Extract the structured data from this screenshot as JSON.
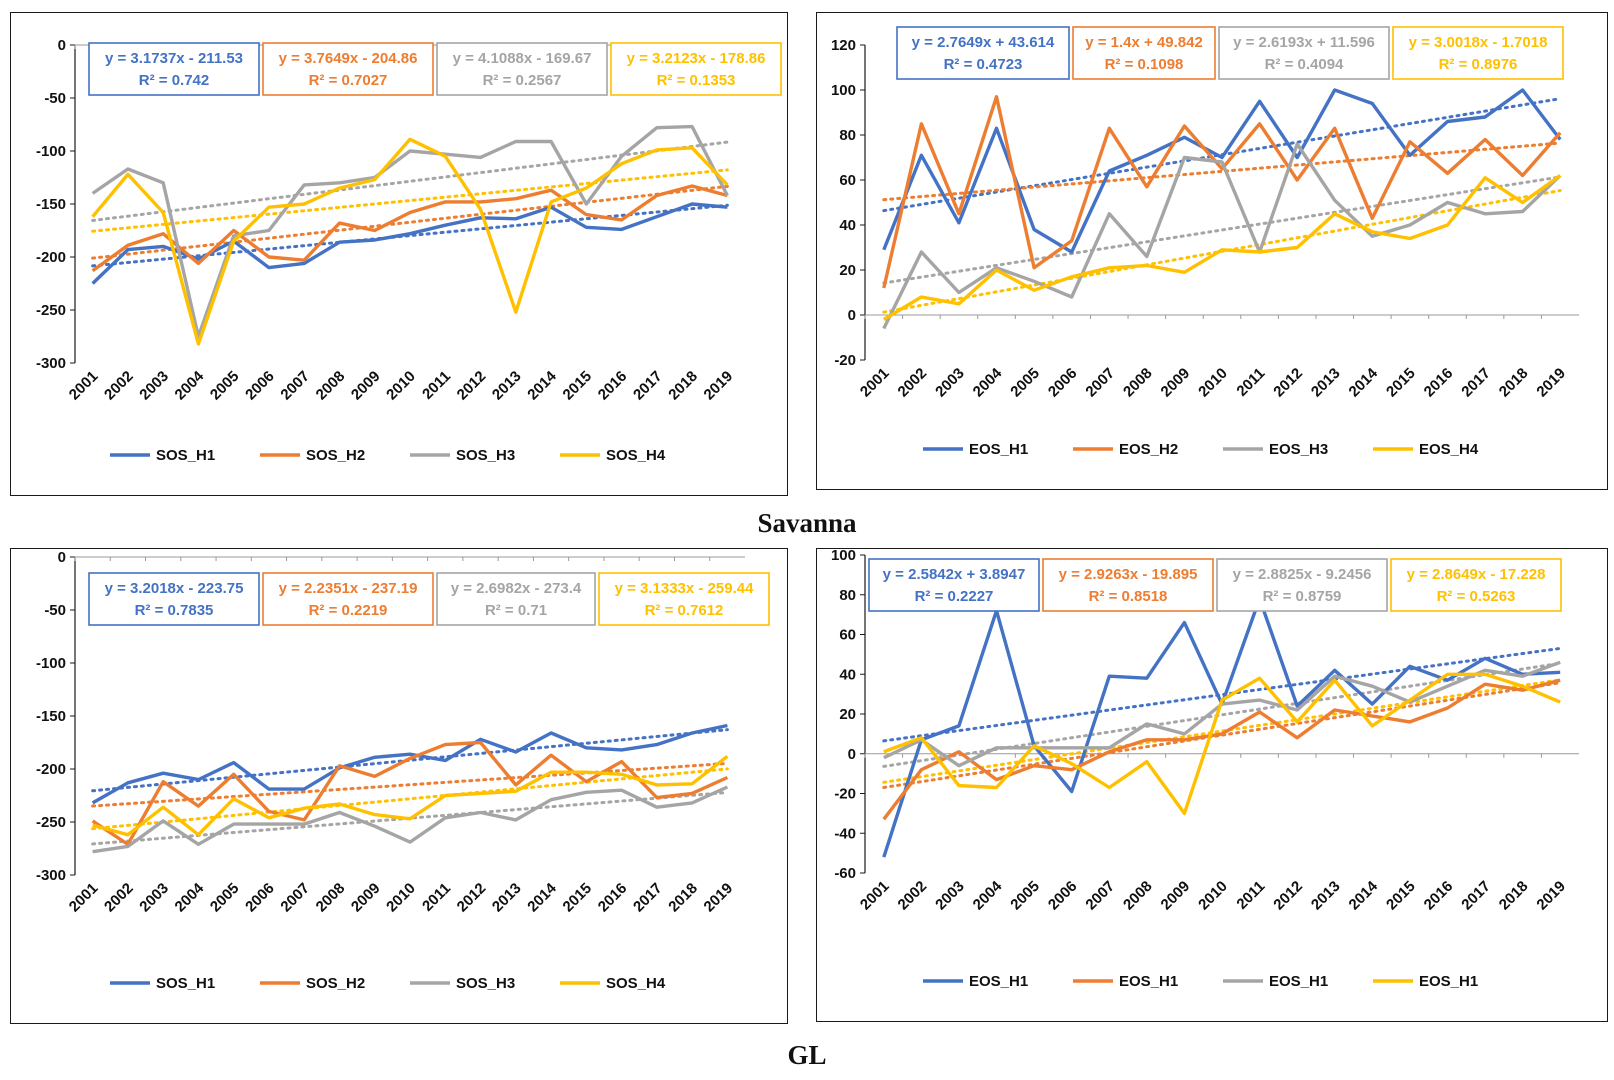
{
  "sections": {
    "top_label": "Savanna",
    "bottom_label": "GL"
  },
  "colors": {
    "H1": "#4472C4",
    "H2": "#ED7D31",
    "H3": "#A5A5A5",
    "H4": "#FFC000",
    "axis": "#1a1a1a"
  },
  "chart_data": [
    {
      "id": "savanna-sos",
      "type": "line",
      "title": "",
      "xlabel": "",
      "ylabel": "",
      "categories": [
        "2001",
        "2002",
        "2003",
        "2004",
        "2005",
        "2006",
        "2007",
        "2008",
        "2009",
        "2010",
        "2011",
        "2012",
        "2013",
        "2014",
        "2015",
        "2016",
        "2017",
        "2018",
        "2019"
      ],
      "ylim": [
        -300,
        0
      ],
      "yticks": [
        0,
        -50,
        -100,
        -150,
        -200,
        -250,
        -300
      ],
      "trendline": "linear-dotted",
      "legend_position": "bottom",
      "series": [
        {
          "name": "SOS_H1",
          "color_key": "H1",
          "equation": "y = 3.1737x - 211.53",
          "r2": "R² = 0.742",
          "slope": 3.1737,
          "intercept": -211.53,
          "values": [
            -225,
            -193,
            -190,
            -202,
            -185,
            -210,
            -206,
            -186,
            -184,
            -178,
            -170,
            -163,
            -164,
            -153,
            -172,
            -174,
            -162,
            -150,
            -153
          ]
        },
        {
          "name": "SOS_H2",
          "color_key": "H2",
          "equation": "y = 3.7649x - 204.86",
          "r2": "R² = 0.7027",
          "slope": 3.7649,
          "intercept": -204.86,
          "values": [
            -213,
            -189,
            -178,
            -206,
            -175,
            -200,
            -203,
            -168,
            -175,
            -158,
            -148,
            -148,
            -145,
            -137,
            -160,
            -165,
            -142,
            -133,
            -142
          ]
        },
        {
          "name": "SOS_H3",
          "color_key": "H3",
          "equation": "y = 4.1088x - 169.67",
          "r2": "R² = 0.2567",
          "slope": 4.1088,
          "intercept": -169.67,
          "values": [
            -140,
            -117,
            -130,
            -275,
            -180,
            -175,
            -132,
            -130,
            -125,
            -100,
            -103,
            -106,
            -91,
            -91,
            -150,
            -105,
            -78,
            -77,
            -142
          ]
        },
        {
          "name": "SOS_H4",
          "color_key": "H4",
          "equation": "y = 3.2123x - 178.86",
          "r2": "R² = 0.1353",
          "slope": 3.2123,
          "intercept": -178.86,
          "values": [
            -162,
            -122,
            -158,
            -282,
            -185,
            -153,
            -150,
            -135,
            -127,
            -89,
            -105,
            -155,
            -252,
            -148,
            -135,
            -112,
            -99,
            -97,
            -132
          ]
        }
      ]
    },
    {
      "id": "savanna-eos",
      "type": "line",
      "title": "",
      "xlabel": "",
      "ylabel": "",
      "categories": [
        "2001",
        "2002",
        "2003",
        "2004",
        "2005",
        "2006",
        "2007",
        "2008",
        "2009",
        "2010",
        "2011",
        "2012",
        "2013",
        "2014",
        "2015",
        "2016",
        "2017",
        "2018",
        "2019"
      ],
      "ylim": [
        -20,
        120
      ],
      "yticks": [
        120,
        100,
        80,
        60,
        40,
        20,
        0,
        -20
      ],
      "trendline": "linear-dotted",
      "legend_position": "bottom",
      "series": [
        {
          "name": "EOS_H1",
          "color_key": "H1",
          "equation": "y = 2.7649x + 43.614",
          "r2": "R² = 0.4723",
          "slope": 2.7649,
          "intercept": 43.614,
          "values": [
            29,
            71,
            41,
            83,
            38,
            28,
            64,
            71,
            79,
            70,
            95,
            70,
            100,
            94,
            71,
            86,
            88,
            100,
            78
          ]
        },
        {
          "name": "EOS_H2",
          "color_key": "H2",
          "equation": "y = 1.4x + 49.842",
          "r2": "R² = 0.1098",
          "slope": 1.4,
          "intercept": 49.842,
          "values": [
            12,
            85,
            45,
            97,
            21,
            33,
            83,
            57,
            84,
            65,
            85,
            60,
            83,
            43,
            77,
            63,
            78,
            62,
            81
          ]
        },
        {
          "name": "EOS_H3",
          "color_key": "H3",
          "equation": "y = 2.6193x + 11.596",
          "r2": "R² = 0.4094",
          "slope": 2.6193,
          "intercept": 11.596,
          "values": [
            -6,
            28,
            10,
            21,
            15,
            8,
            45,
            26,
            70,
            68,
            28,
            76,
            51,
            35,
            40,
            50,
            45,
            46,
            62
          ]
        },
        {
          "name": "EOS_H4",
          "color_key": "H4",
          "equation": "y = 3.0018x - 1.7018",
          "r2": "R² = 0.8976",
          "slope": 3.0018,
          "intercept": -1.7018,
          "values": [
            -2,
            8,
            5,
            20,
            11,
            17,
            21,
            22,
            19,
            29,
            28,
            30,
            45,
            37,
            34,
            40,
            61,
            50,
            62
          ]
        }
      ]
    },
    {
      "id": "gl-sos",
      "type": "line",
      "title": "",
      "xlabel": "",
      "ylabel": "",
      "categories": [
        "2001",
        "2002",
        "2003",
        "2004",
        "2005",
        "2006",
        "2007",
        "2008",
        "2009",
        "2010",
        "2011",
        "2012",
        "2013",
        "2014",
        "2015",
        "2016",
        "2017",
        "2018",
        "2019"
      ],
      "ylim": [
        -300,
        0
      ],
      "yticks": [
        0,
        -50,
        -100,
        -150,
        -200,
        -250,
        -300
      ],
      "trendline": "linear-dotted",
      "legend_position": "bottom",
      "series": [
        {
          "name": "SOS_H1",
          "color_key": "H1",
          "equation": "y = 3.2018x - 223.75",
          "r2": "R² = 0.7835",
          "slope": 3.2018,
          "intercept": -223.75,
          "values": [
            -232,
            -213,
            -204,
            -210,
            -194,
            -219,
            -219,
            -199,
            -189,
            -186,
            -192,
            -172,
            -184,
            -166,
            -180,
            -182,
            -177,
            -166,
            -159
          ]
        },
        {
          "name": "SOS_H2",
          "color_key": "H2",
          "equation": "y = 2.2351x - 237.19",
          "r2": "R² = 0.2219",
          "slope": 2.2351,
          "intercept": -237.19,
          "values": [
            -249,
            -271,
            -212,
            -235,
            -205,
            -240,
            -248,
            -197,
            -207,
            -190,
            -177,
            -175,
            -215,
            -187,
            -212,
            -193,
            -227,
            -223,
            -208
          ]
        },
        {
          "name": "SOS_H3",
          "color_key": "H3",
          "equation": "y = 2.6982x - 273.4",
          "r2": "R² = 0.71",
          "slope": 2.6982,
          "intercept": -273.4,
          "values": [
            -278,
            -273,
            -249,
            -271,
            -252,
            -252,
            -252,
            -241,
            -254,
            -269,
            -246,
            -241,
            -248,
            -229,
            -222,
            -220,
            -236,
            -232,
            -217
          ]
        },
        {
          "name": "SOS_H4",
          "color_key": "H4",
          "equation": "y = 3.1333x - 259.44",
          "r2": "R² = 0.7612",
          "slope": 3.1333,
          "intercept": -259.44,
          "values": [
            -253,
            -262,
            -236,
            -262,
            -228,
            -246,
            -237,
            -233,
            -243,
            -247,
            -225,
            -223,
            -221,
            -203,
            -203,
            -205,
            -215,
            -214,
            -188
          ]
        }
      ]
    },
    {
      "id": "gl-eos",
      "type": "line",
      "title": "",
      "xlabel": "",
      "ylabel": "",
      "categories": [
        "2001",
        "2002",
        "2003",
        "2004",
        "2005",
        "2006",
        "2007",
        "2008",
        "2009",
        "2010",
        "2011",
        "2012",
        "2013",
        "2014",
        "2015",
        "2016",
        "2017",
        "2018",
        "2019"
      ],
      "ylim": [
        -60,
        100
      ],
      "yticks": [
        100,
        80,
        60,
        40,
        20,
        0,
        -20,
        -40,
        -60
      ],
      "trendline": "linear-dotted",
      "legend_position": "bottom",
      "series": [
        {
          "name": "EOS_H1",
          "color_key": "H1",
          "equation": "y = 2.5842x + 3.8947",
          "r2": "R² = 0.2227",
          "slope": 2.5842,
          "intercept": 3.8947,
          "values": [
            -52,
            7,
            14,
            72,
            4,
            -19,
            39,
            38,
            66,
            25,
            78,
            24,
            42,
            25,
            44,
            37,
            48,
            40,
            41
          ]
        },
        {
          "name": "EOS_H1",
          "color_key": "H2",
          "equation": "y = 2.9263x - 19.895",
          "r2": "R² = 0.8518",
          "slope": 2.9263,
          "intercept": -19.895,
          "values": [
            -33,
            -8,
            1,
            -13,
            -6,
            -8,
            1,
            7,
            7,
            10,
            21,
            8,
            22,
            19,
            16,
            23,
            35,
            32,
            37
          ]
        },
        {
          "name": "EOS_H1",
          "color_key": "H3",
          "equation": "y = 2.8825x - 9.2456",
          "r2": "R² = 0.8759",
          "slope": 2.8825,
          "intercept": -9.2456,
          "values": [
            -2,
            7,
            -6,
            3,
            3,
            3,
            3,
            15,
            10,
            25,
            27,
            22,
            39,
            34,
            26,
            34,
            42,
            39,
            46
          ]
        },
        {
          "name": "EOS_H1",
          "color_key": "H4",
          "equation": "y = 2.8649x - 17.228",
          "r2": "R² = 0.5263",
          "slope": 2.8649,
          "intercept": -17.228,
          "values": [
            1,
            8,
            -16,
            -17,
            4,
            -5,
            -17,
            -4,
            -30,
            27,
            38,
            16,
            37,
            14,
            27,
            40,
            40,
            34,
            26
          ]
        }
      ]
    }
  ]
}
